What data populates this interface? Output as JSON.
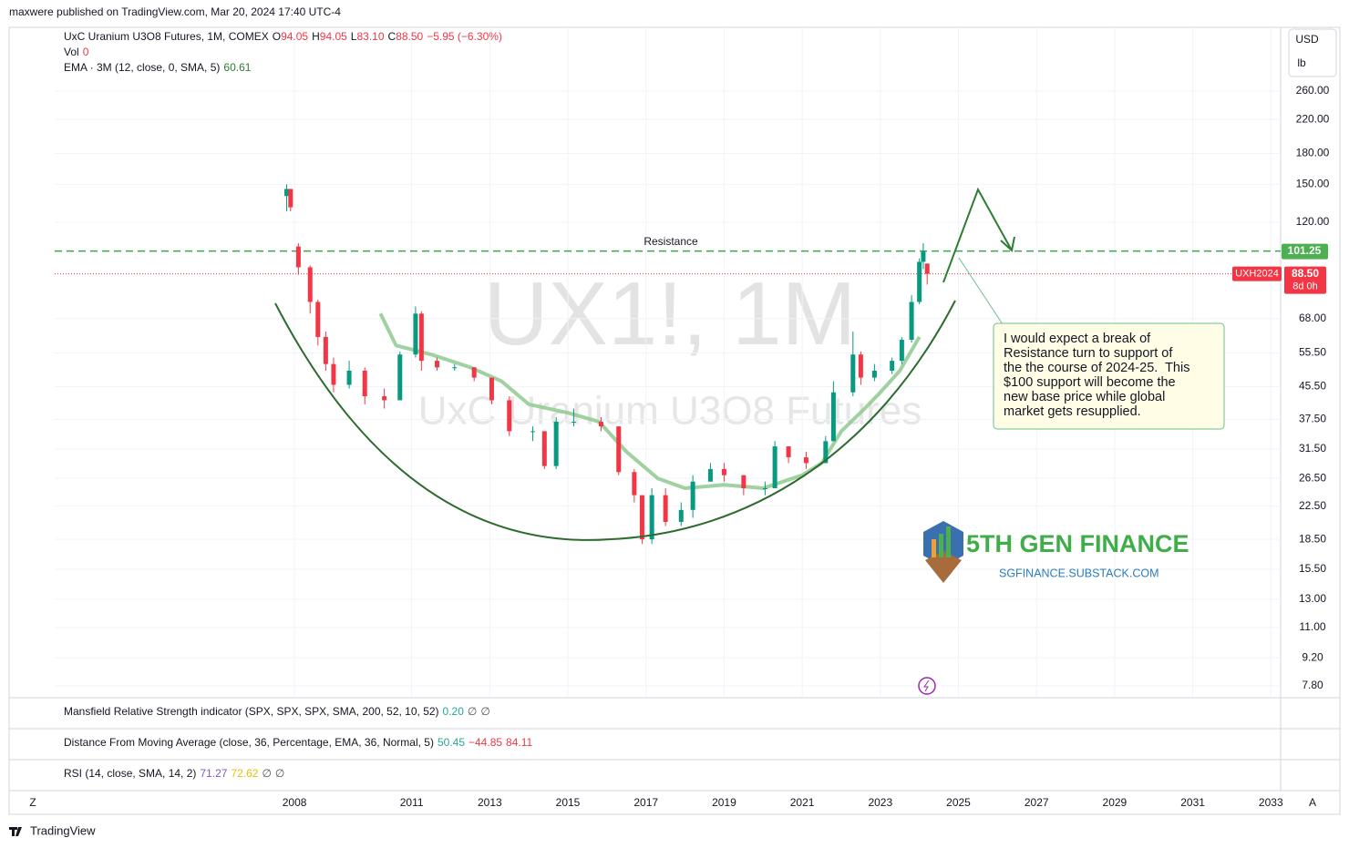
{
  "page": {
    "published": "maxwere published on TradingView.com, Mar 20, 2024 17:40 UTC-4",
    "currency": "USD",
    "unit": "lb",
    "footer": "TradingView",
    "zoom_left": "Z",
    "zoom_right": "A"
  },
  "chart_data": {
    "type": "candlestick",
    "title": "UX1!, 1M",
    "subtitle": "UxC Uranium U3O8 Futures",
    "legend": {
      "symbol": "UxC Uranium U3O8 Futures, 1M, COMEX",
      "ohlc": [
        {
          "label": "O",
          "value": "94.05"
        },
        {
          "label": "H",
          "value": "94.05"
        },
        {
          "label": "L",
          "value": "83.10"
        },
        {
          "label": "C",
          "value": "88.50"
        }
      ],
      "change": "−5.95 (−6.30%)",
      "vol_label": "Vol",
      "vol_value": "0"
    },
    "up_color": "#089981",
    "down_color": "#f23645",
    "log_scale": true,
    "grid": true,
    "x": [
      2007.8,
      2007.9,
      2008.1,
      2008.4,
      2008.6,
      2008.8,
      2009.0,
      2009.4,
      2009.8,
      2010.3,
      2010.7,
      2011.1,
      2011.25,
      2011.65,
      2012.1,
      2012.6,
      2013.05,
      2013.5,
      2014.1,
      2014.4,
      2014.7,
      2015.15,
      2015.85,
      2016.3,
      2016.7,
      2016.9,
      2017.15,
      2017.5,
      2017.9,
      2018.2,
      2018.65,
      2019.0,
      2019.5,
      2020.05,
      2020.3,
      2020.65,
      2021.1,
      2021.6,
      2021.8,
      2022.3,
      2022.5,
      2022.85,
      2023.3,
      2023.55,
      2023.8,
      2024.0,
      2024.1,
      2024.2
    ],
    "open": [
      140,
      146,
      104,
      92,
      75,
      61,
      52,
      46,
      50,
      43,
      42,
      55,
      70,
      53,
      51,
      51,
      48,
      42,
      35,
      35,
      28.5,
      37,
      37,
      36,
      27.5,
      24,
      18.5,
      24,
      20.5,
      22,
      26,
      28,
      27,
      25,
      25,
      32,
      30,
      29,
      33,
      44,
      55,
      48,
      50,
      53,
      60,
      75,
      95,
      94.05
    ],
    "high": [
      150,
      146,
      106,
      93,
      76,
      63,
      54,
      53,
      51,
      45,
      56,
      73,
      71,
      54,
      52,
      51,
      48,
      43,
      36,
      35,
      38,
      40,
      38,
      36,
      28,
      24,
      25,
      25,
      23,
      27,
      29,
      29,
      27,
      26,
      33,
      32,
      31,
      34,
      47,
      63,
      56,
      52,
      54,
      61,
      78,
      97,
      106,
      94.05
    ],
    "low": [
      128,
      128,
      88,
      70,
      58,
      50,
      44,
      45,
      41,
      40,
      42,
      54,
      50,
      50,
      50,
      47,
      41,
      34,
      33,
      28,
      28,
      36,
      35,
      27,
      23,
      18,
      18,
      20,
      20,
      21,
      26,
      26,
      24,
      24,
      25,
      29,
      28,
      29,
      33,
      43,
      46,
      47,
      49,
      52,
      59,
      74,
      91,
      83.1
    ],
    "close": [
      146,
      131,
      92,
      75,
      61,
      52,
      46,
      50,
      43,
      42,
      55,
      70,
      53,
      51,
      51,
      48,
      42,
      35,
      35,
      28.5,
      37,
      37,
      36,
      27.5,
      24,
      18.5,
      24,
      20.5,
      22,
      26,
      28,
      27,
      25,
      25,
      32,
      30,
      29,
      33,
      44,
      55,
      48,
      50,
      53,
      60,
      75,
      95,
      101,
      88.5
    ],
    "ema": {
      "name": "EMA · 3M (12, close, 0, SMA, 5)",
      "value": "60.61",
      "color": "#8fc98f",
      "x": [
        2010.2,
        2010.6,
        2011.5,
        2012.5,
        2013.3,
        2014.0,
        2015.0,
        2015.8,
        2016.5,
        2017.3,
        2018.0,
        2019.0,
        2020.0,
        2021.0,
        2021.5,
        2022.0,
        2022.6,
        2023.0,
        2023.5,
        2024.0
      ],
      "y": [
        70,
        58,
        55,
        51,
        47,
        41,
        39,
        37,
        31,
        26.5,
        25,
        25.5,
        25,
        27,
        29,
        35,
        40,
        44,
        50,
        61
      ]
    },
    "xlim": [
      2001.86,
      2033.25
    ],
    "xticks": [
      2008,
      2011,
      2013,
      2015,
      2017,
      2019,
      2021,
      2023,
      2025,
      2027,
      2029,
      2031,
      2033
    ],
    "ylim": [
      7.31,
      378.6
    ],
    "yticks": [
      {
        "value": 7.8,
        "label": "7.80"
      },
      {
        "value": 9.2,
        "label": "9.20"
      },
      {
        "value": 11,
        "label": "11.00"
      },
      {
        "value": 13,
        "label": "13.00"
      },
      {
        "value": 15.5,
        "label": "15.50"
      },
      {
        "value": 18.5,
        "label": "18.50"
      },
      {
        "value": 22.5,
        "label": "22.50"
      },
      {
        "value": 26.5,
        "label": "26.50"
      },
      {
        "value": 31.5,
        "label": "31.50"
      },
      {
        "value": 37.5,
        "label": "37.50"
      },
      {
        "value": 45.5,
        "label": "45.50"
      },
      {
        "value": 55.5,
        "label": "55.50"
      },
      {
        "value": 68,
        "label": "68.00"
      },
      {
        "value": 120,
        "label": "120.00"
      },
      {
        "value": 150,
        "label": "150.00"
      },
      {
        "value": 180,
        "label": "180.00"
      },
      {
        "value": 220,
        "label": "220.00"
      },
      {
        "value": 260,
        "label": "260.00"
      }
    ],
    "resistance": {
      "value": 101.25,
      "label": "Resistance"
    },
    "last_price": {
      "value": 88.5,
      "label": "88.50",
      "contract": "UXH2024",
      "countdown": "8d 0h"
    },
    "annotation": [
      "I would expect a break of",
      "Resistance turn to support of",
      "the the course of 2024-25.  This",
      "$100 support will become the",
      "new base price while global",
      "market gets resupplied."
    ],
    "logo": {
      "name": "5TH GEN FINANCE",
      "url": "SGFINANCE.SUBSTACK.COM"
    },
    "indicators": [
      {
        "name": "Mansfield Relative Strength indicator (SPX, SPX, SPX, SMA, 200, 52, 10, 52)",
        "values": [
          {
            "text": "0.20",
            "color": "#26a69a"
          },
          {
            "text": "∅",
            "color": "#555"
          },
          {
            "text": "∅",
            "color": "#555"
          }
        ]
      },
      {
        "name": "Distance From Moving Average (close, 36, Percentage, EMA, 36, Normal, 5)",
        "values": [
          {
            "text": "50.45",
            "color": "#26a69a"
          },
          {
            "text": "−44.85",
            "color": "#f23645"
          },
          {
            "text": "84.11",
            "color": "#f23645"
          }
        ]
      },
      {
        "name": "RSI (14, close, SMA, 14, 2)",
        "values": [
          {
            "text": "71.27",
            "color": "#7e57c2"
          },
          {
            "text": "72.62",
            "color": "#e6c200"
          },
          {
            "text": "∅",
            "color": "#555"
          },
          {
            "text": "∅",
            "color": "#555"
          }
        ]
      }
    ]
  }
}
